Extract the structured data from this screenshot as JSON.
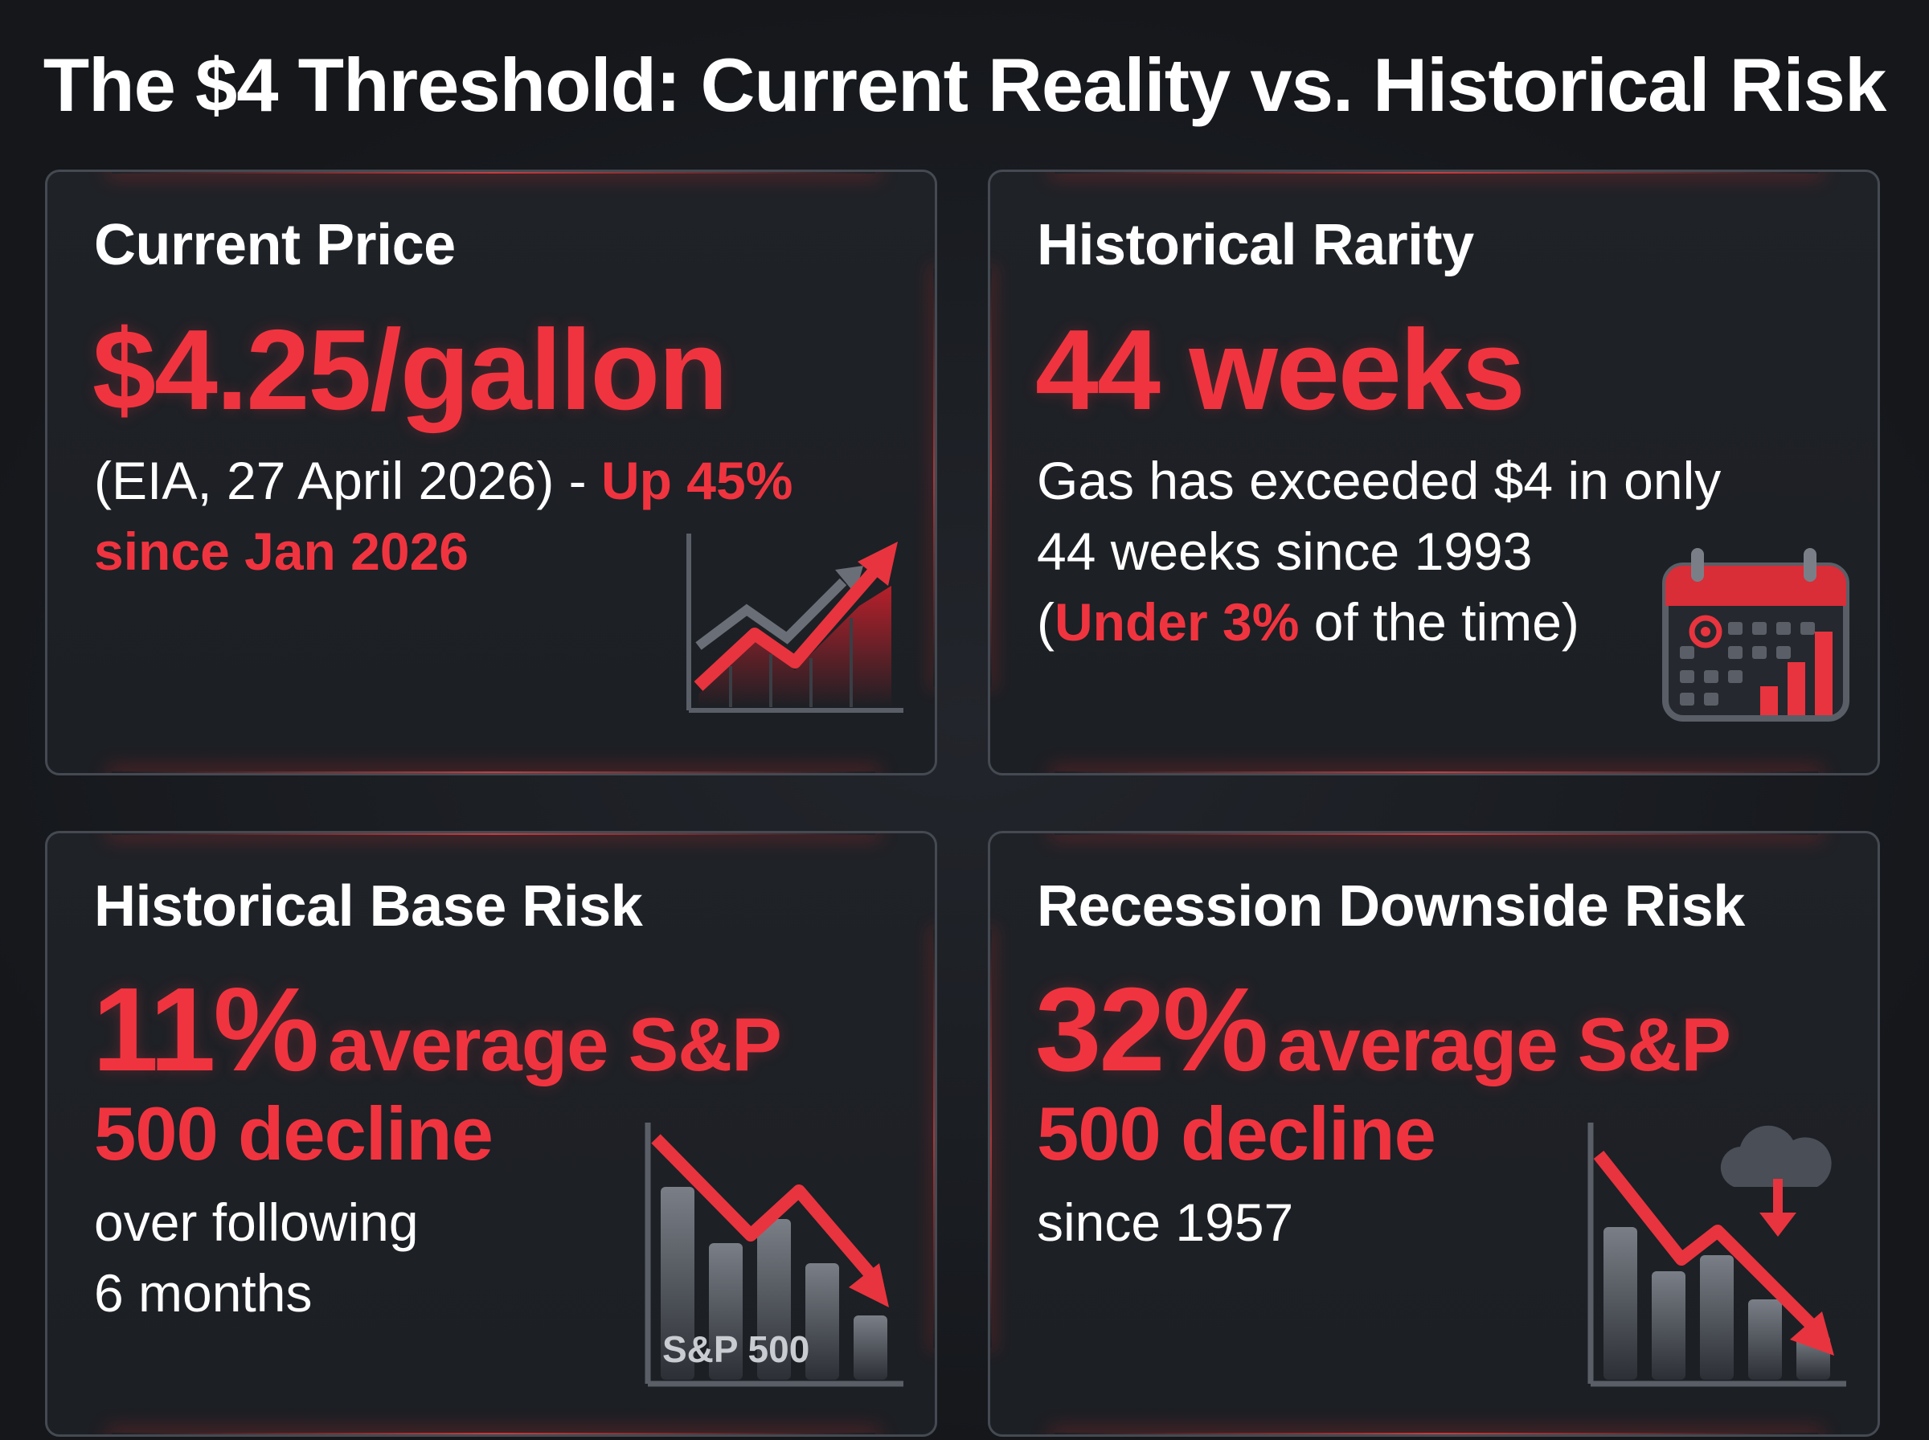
{
  "title": "The $4 Threshold: Current Reality vs. Historical Risk",
  "cards": [
    {
      "title": "Current Price",
      "value": "$4.25/gallon",
      "text_prefix": "(EIA, 27 April 2026) - ",
      "text_highlight": "Up 45% since Jan 2026",
      "icon": "rising-chart-icon"
    },
    {
      "title": "Historical Rarity",
      "value": "44 weeks",
      "text_line1": "Gas has exceeded $4 in only",
      "text_line2": "44 weeks since 1993",
      "text_paren_open": "(",
      "text_highlight": "Under 3%",
      "text_suffix": " of the time)",
      "icon": "calendar-icon"
    },
    {
      "title": "Historical Base Risk",
      "value_pct": "11%",
      "value_label": "average S&P",
      "value_line2": "500 decline",
      "sub_line1": "over following",
      "sub_line2": "6 months",
      "chart_label": "S&P 500",
      "icon": "falling-chart-icon"
    },
    {
      "title": "Recession Downside Risk",
      "value_pct": "32%",
      "value_label": "average S&P",
      "value_line2": "500 decline",
      "sub_line1": "since 1957",
      "icon": "storm-cloud-falling-chart-icon"
    }
  ],
  "colors": {
    "accent": "#f0343f",
    "background": "#1b1e23",
    "card_border": "#454a52",
    "text": "#ffffff"
  }
}
